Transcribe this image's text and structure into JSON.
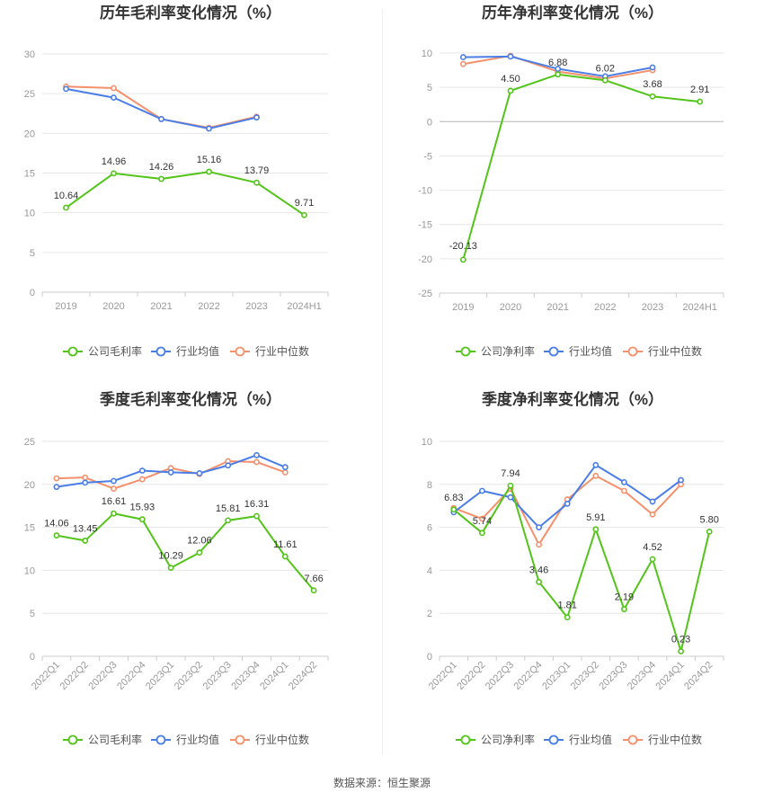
{
  "colors": {
    "company": "#52c41a",
    "industry_avg": "#4a7ee6",
    "industry_median": "#f4906b"
  },
  "legend": {
    "company_gross": "公司毛利率",
    "company_net": "公司净利率",
    "industry_avg": "行业均值",
    "industry_median": "行业中位数"
  },
  "footer": {
    "source": "数据来源：恒生聚源"
  },
  "chart_data": [
    {
      "type": "line",
      "title": "历年毛利率变化情况（%）",
      "categories": [
        "2019",
        "2020",
        "2021",
        "2022",
        "2023",
        "2024H1"
      ],
      "ylim": [
        0,
        30
      ],
      "yticks": [
        0,
        5,
        10,
        15,
        20,
        25,
        30
      ],
      "series": [
        {
          "name": "公司毛利率",
          "values": [
            10.64,
            14.96,
            14.26,
            15.16,
            13.79,
            9.71
          ],
          "labels": [
            "10.64",
            "14.96",
            "14.26",
            "15.16",
            "13.79",
            "9.71"
          ]
        },
        {
          "name": "行业均值",
          "values": [
            25.6,
            24.5,
            21.8,
            20.6,
            22.0,
            null
          ]
        },
        {
          "name": "行业中位数",
          "values": [
            25.9,
            25.7,
            21.8,
            20.7,
            22.1,
            null
          ]
        }
      ]
    },
    {
      "type": "line",
      "title": "历年净利率变化情况（%）",
      "categories": [
        "2019",
        "2020",
        "2021",
        "2022",
        "2023",
        "2024H1"
      ],
      "ylim": [
        -25,
        10
      ],
      "yticks": [
        -25,
        -20,
        -15,
        -10,
        -5,
        0,
        5,
        10
      ],
      "series": [
        {
          "name": "公司净利率",
          "values": [
            -20.13,
            4.5,
            6.88,
            6.02,
            3.68,
            2.91
          ],
          "labels": [
            "-20.13",
            "4.50",
            "6.88",
            "6.02",
            "3.68",
            "2.91"
          ]
        },
        {
          "name": "行业均值",
          "values": [
            9.4,
            9.5,
            7.7,
            6.6,
            7.9,
            null
          ]
        },
        {
          "name": "行业中位数",
          "values": [
            8.4,
            9.6,
            7.3,
            6.3,
            7.5,
            null
          ]
        }
      ]
    },
    {
      "type": "line",
      "title": "季度毛利率变化情况（%）",
      "categories": [
        "2022Q1",
        "2022Q2",
        "2022Q3",
        "2022Q4",
        "2023Q1",
        "2023Q2",
        "2023Q3",
        "2023Q4",
        "2024Q1",
        "2024Q2"
      ],
      "ylim": [
        0,
        25
      ],
      "yticks": [
        0,
        5,
        10,
        15,
        20,
        25
      ],
      "series": [
        {
          "name": "公司毛利率",
          "values": [
            14.06,
            13.45,
            16.61,
            15.93,
            10.29,
            12.06,
            15.81,
            16.31,
            11.61,
            7.66
          ],
          "labels": [
            "14.06",
            "13.45",
            "16.61",
            "15.93",
            "10.29",
            "12.06",
            "15.81",
            "16.31",
            "11.61",
            "7.66"
          ]
        },
        {
          "name": "行业均值",
          "values": [
            19.7,
            20.2,
            20.4,
            21.6,
            21.4,
            21.3,
            22.2,
            23.4,
            22.0,
            null
          ]
        },
        {
          "name": "行业中位数",
          "values": [
            20.7,
            20.8,
            19.5,
            20.6,
            21.9,
            21.2,
            22.7,
            22.6,
            21.4,
            null
          ]
        }
      ]
    },
    {
      "type": "line",
      "title": "季度净利率变化情况（%）",
      "categories": [
        "2022Q1",
        "2022Q2",
        "2022Q3",
        "2022Q4",
        "2023Q1",
        "2023Q2",
        "2023Q3",
        "2023Q4",
        "2024Q1",
        "2024Q2"
      ],
      "ylim": [
        0,
        10
      ],
      "yticks": [
        0,
        2,
        4,
        6,
        8,
        10
      ],
      "series": [
        {
          "name": "公司净利率",
          "values": [
            6.83,
            5.74,
            7.94,
            3.46,
            1.81,
            5.91,
            2.19,
            4.52,
            0.23,
            5.8
          ],
          "labels": [
            "6.83",
            "5.74",
            "7.94",
            "3.46",
            "1.81",
            "5.91",
            "2.19",
            "4.52",
            "0.23",
            "5.80"
          ]
        },
        {
          "name": "行业均值",
          "values": [
            6.7,
            7.7,
            7.4,
            6.0,
            7.1,
            8.9,
            8.1,
            7.2,
            8.2,
            null
          ]
        },
        {
          "name": "行业中位数",
          "values": [
            6.9,
            6.4,
            7.8,
            5.2,
            7.3,
            8.4,
            7.7,
            6.6,
            8.0,
            null
          ]
        }
      ]
    }
  ]
}
